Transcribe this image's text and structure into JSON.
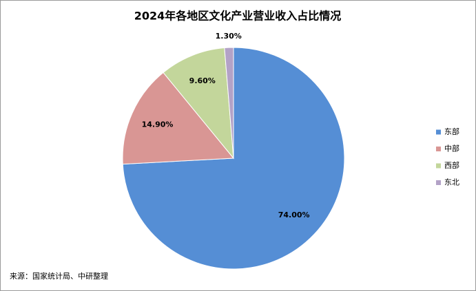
{
  "chart_data": {
    "type": "pie",
    "title": "2024年各地区文化产业营业收入占比情况",
    "categories": [
      "东部",
      "中部",
      "西部",
      "东北"
    ],
    "values": [
      74.0,
      14.9,
      9.6,
      1.3
    ],
    "value_labels": [
      "74.00%",
      "14.90%",
      "9.60%",
      "1.30%"
    ],
    "colors": [
      "#558ed5",
      "#d99694",
      "#c3d69b",
      "#b3a2c7"
    ],
    "legend": "right",
    "source": "来源：国家统计局、中研整理"
  }
}
